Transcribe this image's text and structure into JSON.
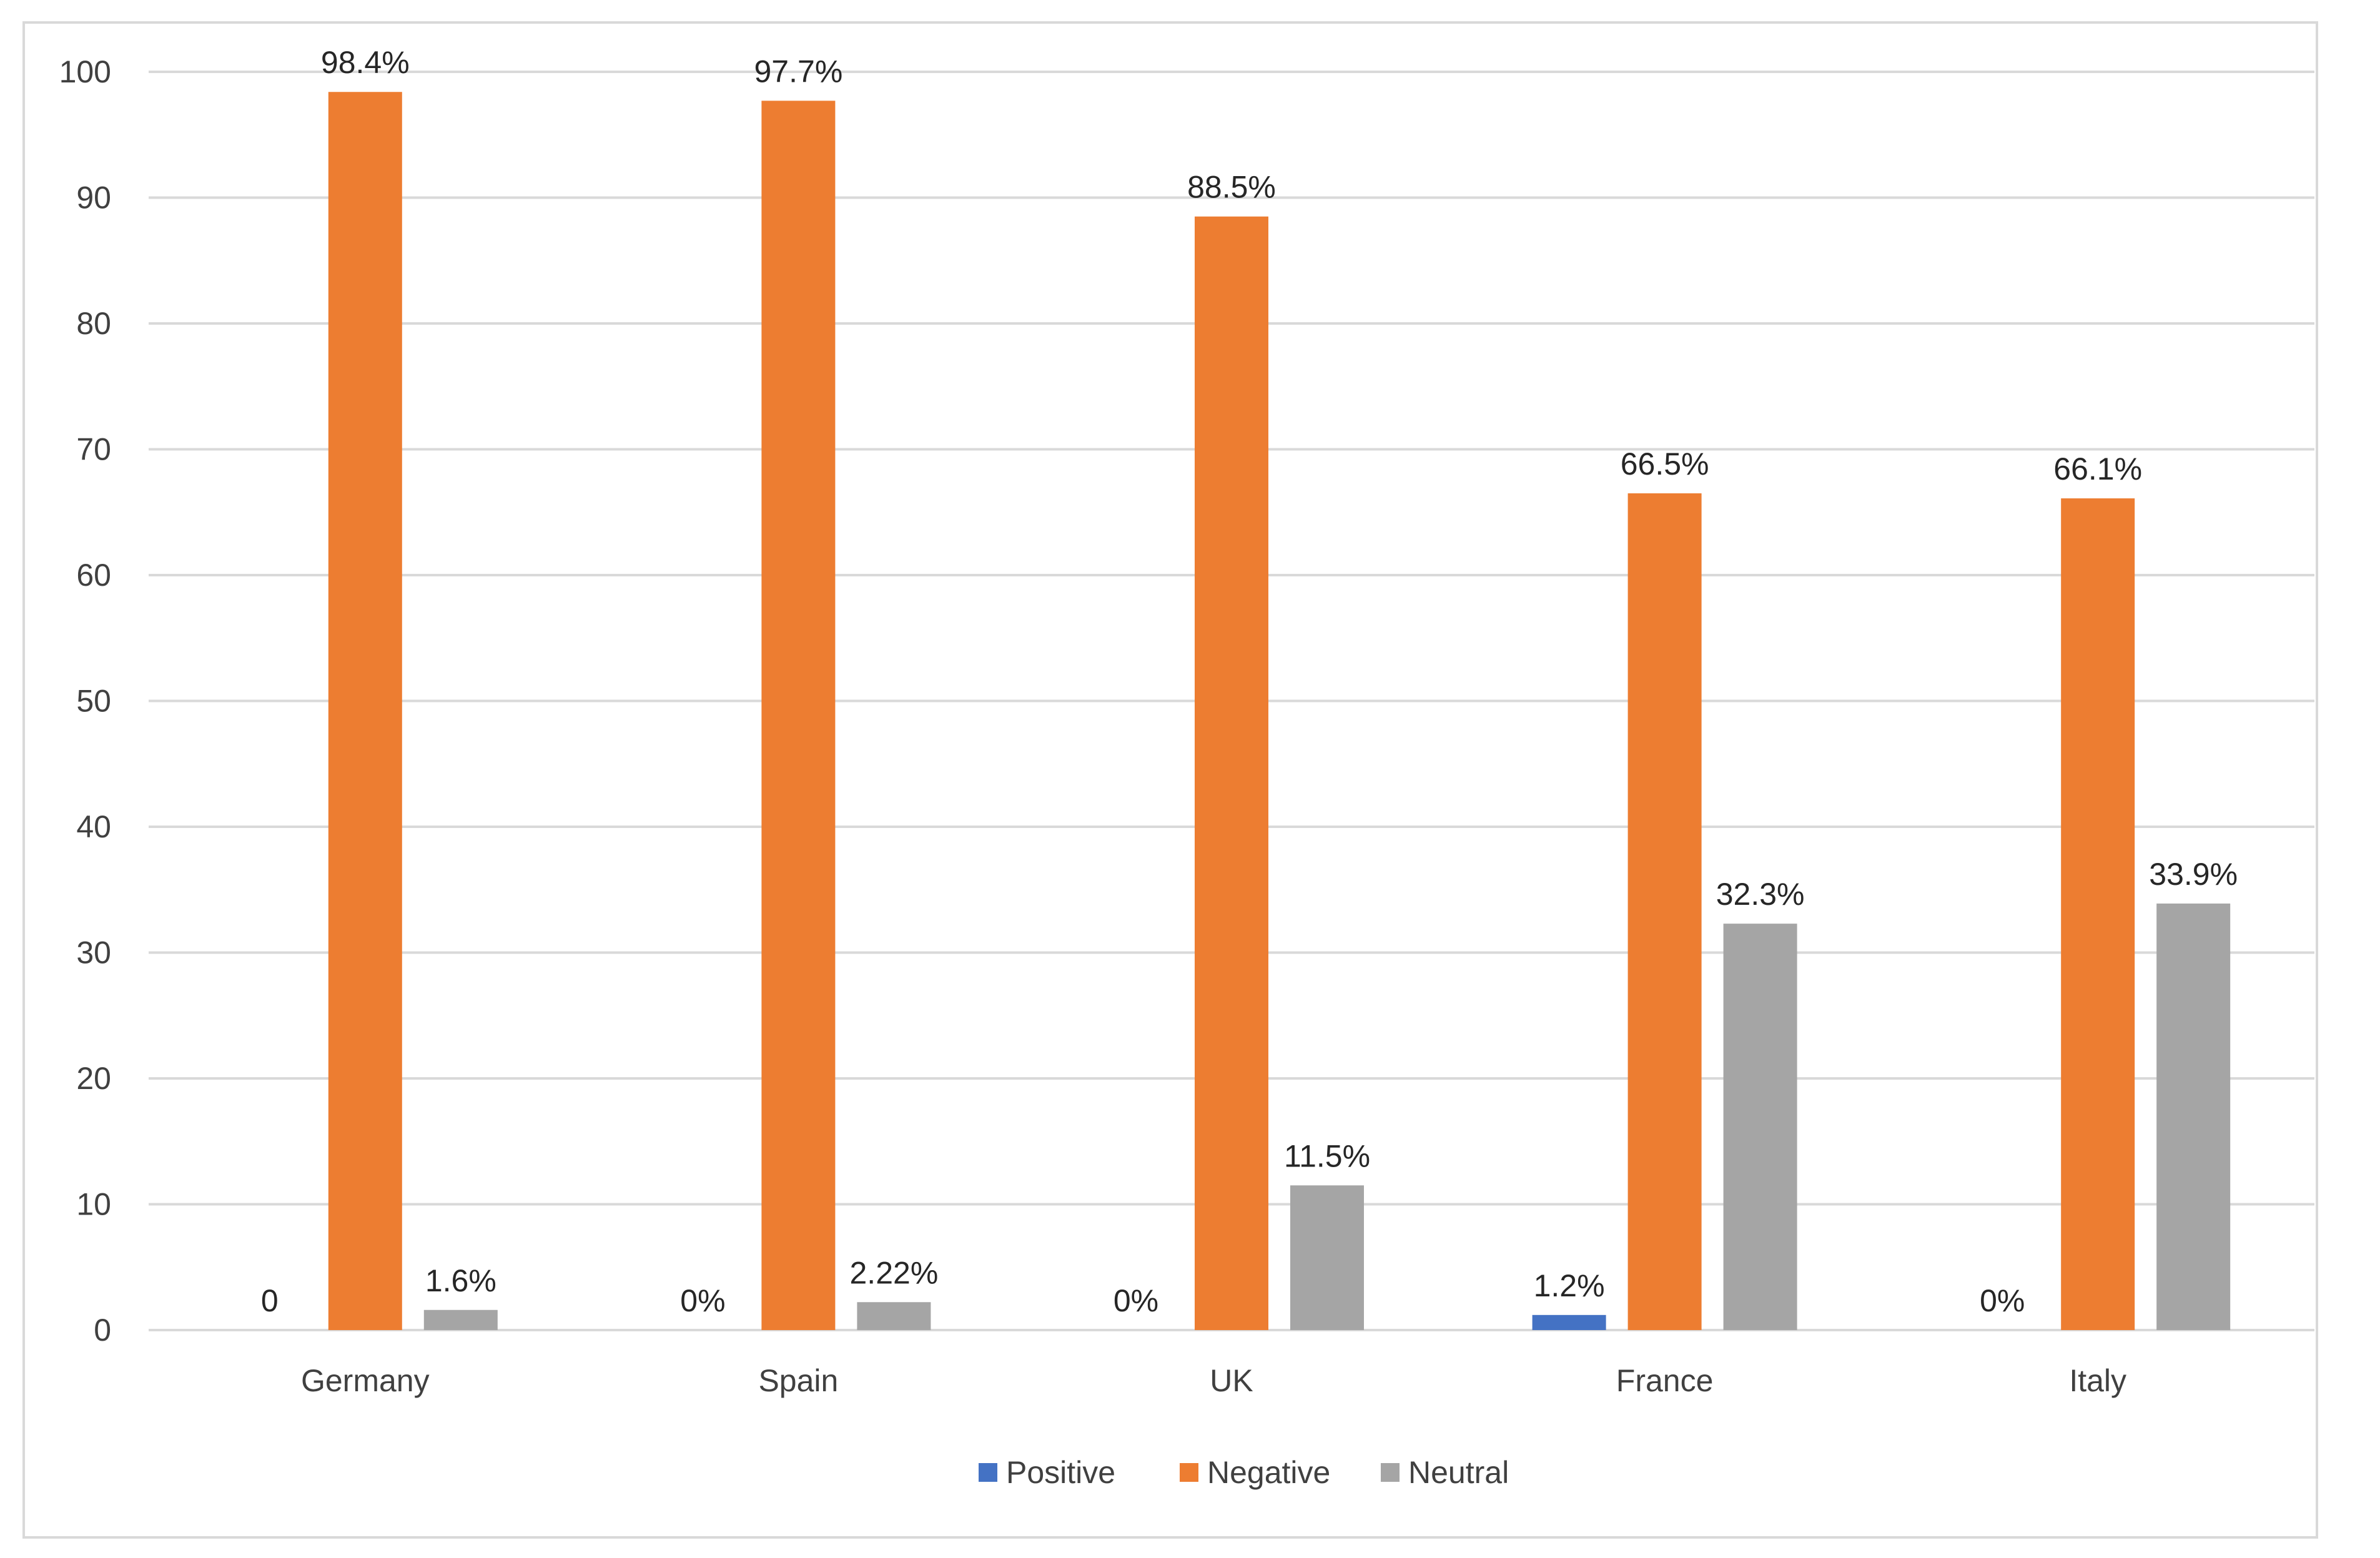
{
  "chart_data": {
    "type": "bar",
    "title": "",
    "xlabel": "",
    "ylabel": "",
    "ylim": [
      0,
      100
    ],
    "yticks": [
      0,
      10,
      20,
      30,
      40,
      50,
      60,
      70,
      80,
      90,
      100
    ],
    "grid": true,
    "legend_position": "bottom",
    "categories": [
      "Germany",
      "Spain",
      "UK",
      "France",
      "Italy"
    ],
    "series": [
      {
        "name": "Positive",
        "color": "#4472c4",
        "values": [
          0,
          0,
          0,
          1.2,
          0
        ],
        "labels": [
          "0",
          "0%",
          "0%",
          "1.2%",
          "0%"
        ]
      },
      {
        "name": "Negative",
        "color": "#ed7d31",
        "values": [
          98.4,
          97.7,
          88.5,
          66.5,
          66.1
        ],
        "labels": [
          "98.4%",
          "97.7%",
          "88.5%",
          "66.5%",
          "66.1%"
        ]
      },
      {
        "name": "Neutral",
        "color": "#a5a5a5",
        "values": [
          1.6,
          2.22,
          11.5,
          32.3,
          33.9
        ],
        "labels": [
          "1.6%",
          "2.22%",
          "11.5%",
          "32.3%",
          "33.9%"
        ]
      }
    ]
  },
  "colors": {
    "gridline": "#d9d9d9",
    "axis": "#d9d9d9",
    "frame_border": "#d9d9d9"
  }
}
